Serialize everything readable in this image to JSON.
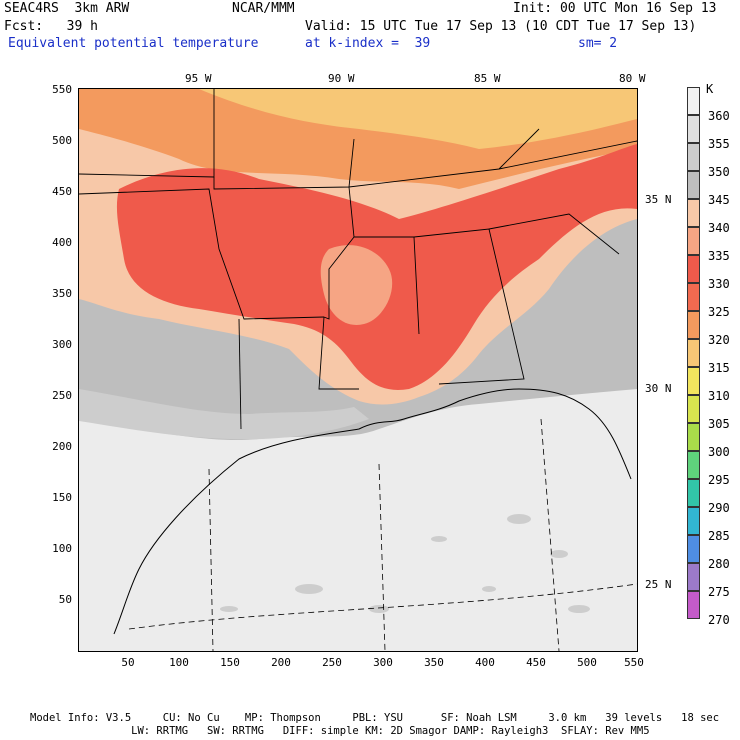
{
  "header": {
    "model": "SEAC4RS  3km ARW",
    "center": "NCAR/MMM",
    "init": "Init: 00 UTC Mon 16 Sep 13",
    "fcst": "Fcst:   39 h",
    "valid": "Valid: 15 UTC Tue 17 Sep 13 (10 CDT Tue 17 Sep 13)",
    "field": "Equivalent potential temperature",
    "level": "at k-index =  39",
    "smoothing": "sm= 2"
  },
  "map": {
    "lon_labels": [
      "95 W",
      "90 W",
      "85 W",
      "80 W"
    ],
    "lat_labels": [
      "35 N",
      "30 N",
      "25 N"
    ],
    "y_ticks": [
      "550",
      "500",
      "450",
      "400",
      "350",
      "300",
      "250",
      "200",
      "150",
      "100",
      "50"
    ],
    "x_ticks": [
      "50",
      "100",
      "150",
      "200",
      "250",
      "300",
      "350",
      "400",
      "450",
      "500",
      "550"
    ]
  },
  "colorbar": {
    "unit": "K",
    "levels": [
      {
        "label": "360",
        "color": "#f2f2f2"
      },
      {
        "label": "355",
        "color": "#e0e0e0"
      },
      {
        "label": "350",
        "color": "#cdcdcd"
      },
      {
        "label": "345",
        "color": "#bebebe"
      },
      {
        "label": "340",
        "color": "#f7c8a8"
      },
      {
        "label": "335",
        "color": "#f6a584"
      },
      {
        "label": "330",
        "color": "#ef5a4b"
      },
      {
        "label": "325",
        "color": "#f26a50"
      },
      {
        "label": "320",
        "color": "#f39a5e"
      },
      {
        "label": "315",
        "color": "#f7c776"
      },
      {
        "label": "310",
        "color": "#f2e55e"
      },
      {
        "label": "305",
        "color": "#d8e44f"
      },
      {
        "label": "300",
        "color": "#a9dc4a"
      },
      {
        "label": "295",
        "color": "#5fd27c"
      },
      {
        "label": "290",
        "color": "#32c5a8"
      },
      {
        "label": "285",
        "color": "#32b6d2"
      },
      {
        "label": "280",
        "color": "#4f8ee3"
      },
      {
        "label": "275",
        "color": "#9c7ac9"
      },
      {
        "label": "270",
        "color": "#c45bc9"
      }
    ]
  },
  "footer": {
    "line1": "Model Info: V3.5     CU: No Cu    MP: Thompson     PBL: YSU      SF: Noah LSM     3.0 km   39 levels   18 sec",
    "line2": "                LW: RRTMG   SW: RRTMG   DIFF: simple KM: 2D Smagor DAMP: Rayleigh3  SFLAY: Rev MM5"
  }
}
